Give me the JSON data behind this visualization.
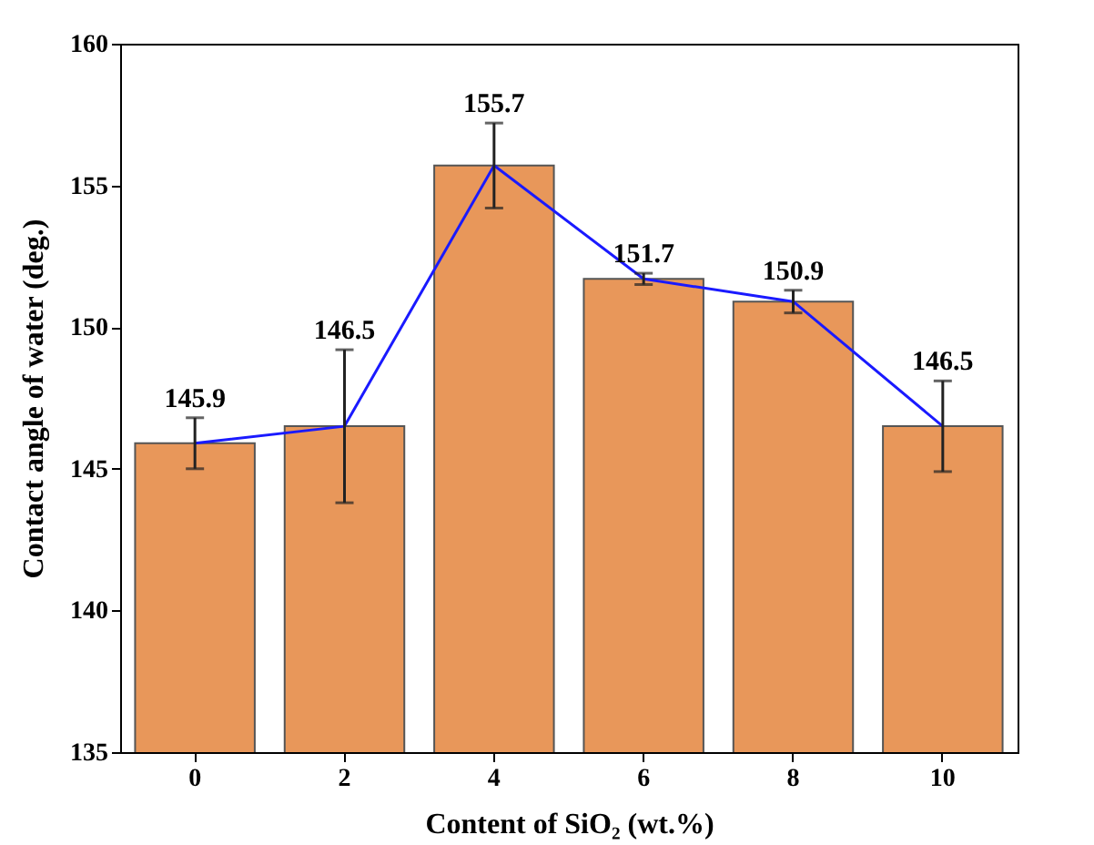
{
  "chart_data": {
    "type": "bar",
    "xlabel": "Content of SiO₂ (wt.%)",
    "ylabel": "Contact angle of water (deg.)",
    "categories": [
      "0",
      "2",
      "4",
      "6",
      "8",
      "10"
    ],
    "series": [
      {
        "color": "#e8975a",
        "values": [
          145.9,
          146.5,
          155.7,
          151.7,
          150.9,
          146.5
        ],
        "errors": [
          0.9,
          2.7,
          1.5,
          0.2,
          0.4,
          1.6
        ],
        "value_labels": [
          "145.9",
          "146.5",
          "155.7",
          "151.7",
          "150.9",
          "146.5"
        ]
      },
      {
        "type": "line",
        "color": "#1a1aff",
        "values": [
          145.9,
          146.5,
          155.7,
          151.7,
          150.9,
          146.5
        ]
      }
    ],
    "ylim": [
      135,
      160
    ],
    "yticks": [
      135,
      140,
      145,
      150,
      155,
      160
    ],
    "grid": false
  }
}
